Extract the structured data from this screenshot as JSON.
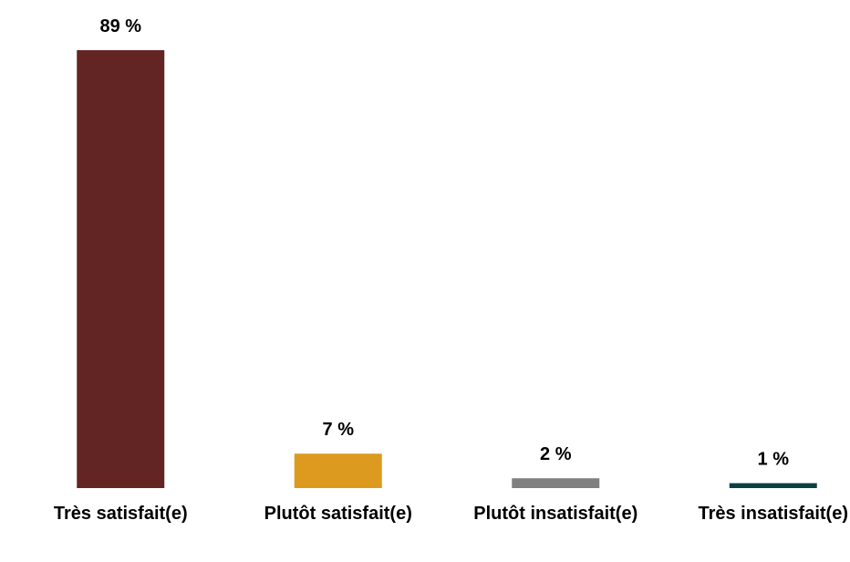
{
  "chart_data": {
    "type": "bar",
    "categories": [
      "Très satisfait(e)",
      "Plutôt satisfait(e)",
      "Plutôt insatisfait(e)",
      "Très insatisfait(e)"
    ],
    "values": [
      89,
      7,
      2,
      1
    ],
    "value_labels": [
      "89 %",
      "7 %",
      "2 %",
      "1 %"
    ],
    "colors": [
      "#632523",
      "#dc9a1e",
      "#808080",
      "#0b4045"
    ]
  }
}
